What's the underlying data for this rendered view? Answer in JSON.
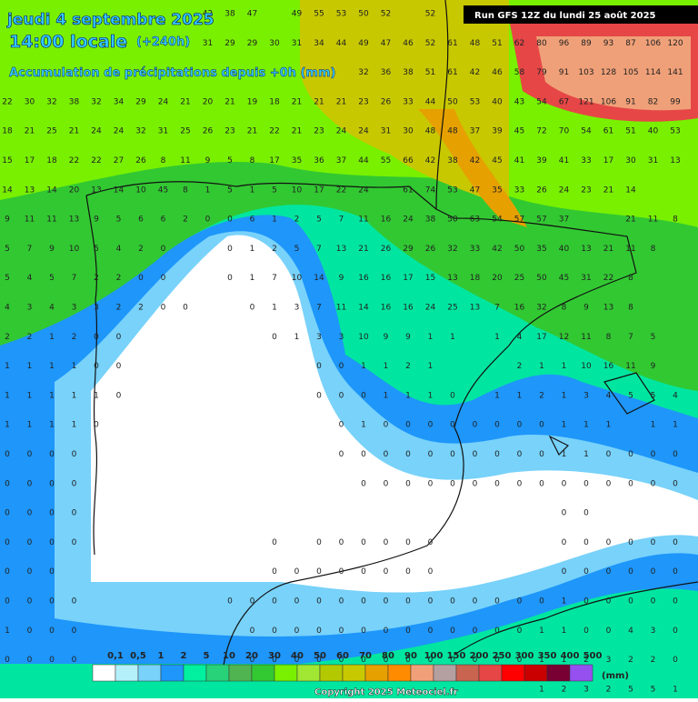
{
  "header": {
    "date": "jeudi 4 septembre 2025",
    "time": "14:00 locale",
    "offset": "(+240h)",
    "subtitle": "Accumulation de précipitations depuis +0h (mm)",
    "run": "Run GFS 12Z du lundi 25 août 2025"
  },
  "legend": {
    "labels": [
      "0,1",
      "0,5",
      "1",
      "2",
      "5",
      "10",
      "20",
      "30",
      "40",
      "50",
      "60",
      "70",
      "80",
      "90",
      "100",
      "150",
      "200",
      "250",
      "300",
      "350",
      "400",
      "500"
    ],
    "unit": "(mm)",
    "colors": [
      "#ffffff",
      "#b4f0fa",
      "#78d2fa",
      "#1e96fa",
      "#00f0a0",
      "#28d278",
      "#50b450",
      "#32c832",
      "#78f000",
      "#a0e632",
      "#b4c800",
      "#c8c800",
      "#e6a000",
      "#ff8c00",
      "#f0a078",
      "#b4a0a0",
      "#c86450",
      "#e64646",
      "#ff0000",
      "#c80000",
      "#780032",
      "#9650f0"
    ]
  },
  "grid": {
    "rows": [
      [
        null,
        null,
        null,
        null,
        null,
        null,
        null,
        null,
        null,
        42,
        38,
        47,
        null,
        49,
        55,
        53,
        50,
        52,
        null,
        52,
        null,
        null,
        null,
        null,
        null,
        null,
        null,
        null,
        null,
        null,
        null
      ],
      [
        null,
        null,
        null,
        null,
        null,
        null,
        null,
        null,
        null,
        31,
        29,
        29,
        30,
        31,
        34,
        44,
        49,
        47,
        46,
        52,
        61,
        48,
        51,
        62,
        80,
        96,
        89,
        93,
        87,
        106,
        120
      ],
      [
        null,
        null,
        null,
        null,
        null,
        null,
        null,
        null,
        null,
        null,
        null,
        null,
        null,
        null,
        null,
        null,
        32,
        36,
        38,
        51,
        61,
        42,
        46,
        58,
        79,
        91,
        103,
        128,
        105,
        114,
        141
      ],
      [
        22,
        30,
        32,
        38,
        32,
        34,
        29,
        24,
        21,
        20,
        21,
        19,
        18,
        21,
        21,
        21,
        23,
        26,
        33,
        44,
        50,
        53,
        40,
        43,
        54,
        67,
        121,
        106,
        91,
        82,
        99
      ],
      [
        18,
        21,
        25,
        21,
        24,
        24,
        32,
        31,
        25,
        26,
        23,
        21,
        22,
        21,
        23,
        24,
        24,
        31,
        30,
        48,
        48,
        37,
        39,
        45,
        72,
        70,
        54,
        61,
        51,
        40,
        53
      ],
      [
        15,
        17,
        18,
        22,
        22,
        27,
        26,
        8,
        11,
        9,
        5,
        8,
        17,
        35,
        36,
        37,
        44,
        55,
        66,
        42,
        38,
        42,
        45,
        41,
        39,
        41,
        33,
        17,
        30,
        31,
        13
      ],
      [
        14,
        13,
        14,
        20,
        13,
        14,
        10,
        45,
        8,
        1,
        5,
        1,
        5,
        10,
        17,
        22,
        24,
        null,
        61,
        74,
        53,
        47,
        35,
        33,
        26,
        24,
        23,
        21,
        14,
        null,
        null
      ],
      [
        9,
        11,
        11,
        13,
        9,
        5,
        6,
        6,
        2,
        0,
        0,
        6,
        1,
        2,
        5,
        7,
        11,
        16,
        24,
        38,
        50,
        63,
        54,
        57,
        57,
        37,
        null,
        null,
        21,
        11,
        8
      ],
      [
        5,
        7,
        9,
        10,
        5,
        4,
        2,
        0,
        null,
        null,
        0,
        1,
        2,
        5,
        7,
        13,
        21,
        26,
        29,
        26,
        32,
        33,
        42,
        50,
        35,
        40,
        13,
        21,
        11,
        8,
        null
      ],
      [
        5,
        4,
        5,
        7,
        2,
        2,
        0,
        0,
        null,
        null,
        0,
        1,
        7,
        10,
        14,
        9,
        16,
        16,
        17,
        15,
        13,
        18,
        20,
        25,
        50,
        45,
        31,
        22,
        8,
        null,
        null
      ],
      [
        4,
        3,
        4,
        3,
        3,
        2,
        2,
        0,
        0,
        null,
        null,
        0,
        1,
        3,
        7,
        11,
        14,
        16,
        16,
        24,
        25,
        13,
        7,
        16,
        32,
        8,
        9,
        13,
        8,
        null,
        null
      ],
      [
        2,
        2,
        1,
        2,
        0,
        0,
        null,
        null,
        null,
        null,
        null,
        null,
        0,
        1,
        3,
        3,
        10,
        9,
        9,
        1,
        1,
        null,
        1,
        4,
        17,
        12,
        11,
        8,
        7,
        5,
        null
      ],
      [
        1,
        1,
        1,
        1,
        0,
        0,
        null,
        null,
        null,
        null,
        null,
        null,
        null,
        null,
        0,
        0,
        1,
        1,
        2,
        1,
        null,
        null,
        null,
        2,
        1,
        1,
        10,
        16,
        11,
        9,
        null
      ],
      [
        1,
        1,
        1,
        1,
        1,
        0,
        null,
        null,
        null,
        null,
        null,
        null,
        null,
        null,
        0,
        0,
        0,
        1,
        1,
        1,
        0,
        null,
        1,
        1,
        2,
        1,
        3,
        4,
        5,
        5,
        4
      ],
      [
        1,
        1,
        1,
        1,
        0,
        null,
        null,
        null,
        null,
        null,
        null,
        null,
        null,
        null,
        null,
        0,
        1,
        0,
        0,
        0,
        0,
        0,
        0,
        0,
        0,
        1,
        1,
        1,
        null,
        1,
        1
      ],
      [
        0,
        0,
        0,
        0,
        null,
        null,
        null,
        null,
        null,
        null,
        null,
        null,
        null,
        null,
        null,
        0,
        0,
        0,
        0,
        0,
        0,
        0,
        0,
        0,
        0,
        1,
        1,
        0,
        0,
        0,
        0
      ],
      [
        0,
        0,
        0,
        0,
        null,
        null,
        null,
        null,
        null,
        null,
        null,
        null,
        null,
        null,
        null,
        null,
        0,
        0,
        0,
        0,
        0,
        0,
        0,
        0,
        0,
        0,
        0,
        0,
        0,
        0,
        0
      ],
      [
        0,
        0,
        0,
        0,
        null,
        null,
        null,
        null,
        null,
        null,
        null,
        null,
        null,
        null,
        null,
        null,
        null,
        null,
        null,
        null,
        null,
        null,
        null,
        null,
        null,
        0,
        0,
        null,
        null,
        null,
        null
      ],
      [
        0,
        0,
        0,
        0,
        null,
        null,
        null,
        null,
        null,
        null,
        null,
        null,
        0,
        null,
        0,
        0,
        0,
        0,
        0,
        0,
        null,
        null,
        null,
        null,
        null,
        0,
        0,
        0,
        0,
        0,
        0
      ],
      [
        0,
        0,
        0,
        null,
        null,
        null,
        null,
        null,
        null,
        null,
        null,
        null,
        0,
        0,
        0,
        0,
        0,
        0,
        0,
        0,
        null,
        null,
        null,
        null,
        null,
        0,
        0,
        0,
        0,
        0,
        0
      ],
      [
        0,
        0,
        0,
        0,
        null,
        null,
        null,
        null,
        null,
        null,
        0,
        0,
        0,
        0,
        0,
        0,
        0,
        0,
        0,
        0,
        0,
        0,
        0,
        0,
        0,
        1,
        0,
        0,
        0,
        0,
        0
      ],
      [
        1,
        0,
        0,
        0,
        null,
        null,
        null,
        null,
        null,
        null,
        null,
        0,
        0,
        0,
        0,
        0,
        0,
        0,
        0,
        0,
        0,
        0,
        0,
        0,
        1,
        1,
        0,
        0,
        4,
        3,
        0
      ],
      [
        0,
        0,
        0,
        0,
        null,
        null,
        null,
        null,
        null,
        null,
        null,
        0,
        0,
        0,
        0,
        0,
        0,
        0,
        0,
        0,
        0,
        0,
        0,
        0,
        1,
        1,
        2,
        3,
        2,
        2,
        0
      ],
      [
        null,
        null,
        null,
        null,
        null,
        null,
        null,
        null,
        null,
        null,
        null,
        null,
        null,
        null,
        null,
        null,
        null,
        null,
        null,
        null,
        null,
        null,
        null,
        null,
        1,
        2,
        3,
        2,
        5,
        5,
        1
      ]
    ]
  },
  "footer": {
    "copyright": "Copyright 2025 Meteociel.fr"
  }
}
